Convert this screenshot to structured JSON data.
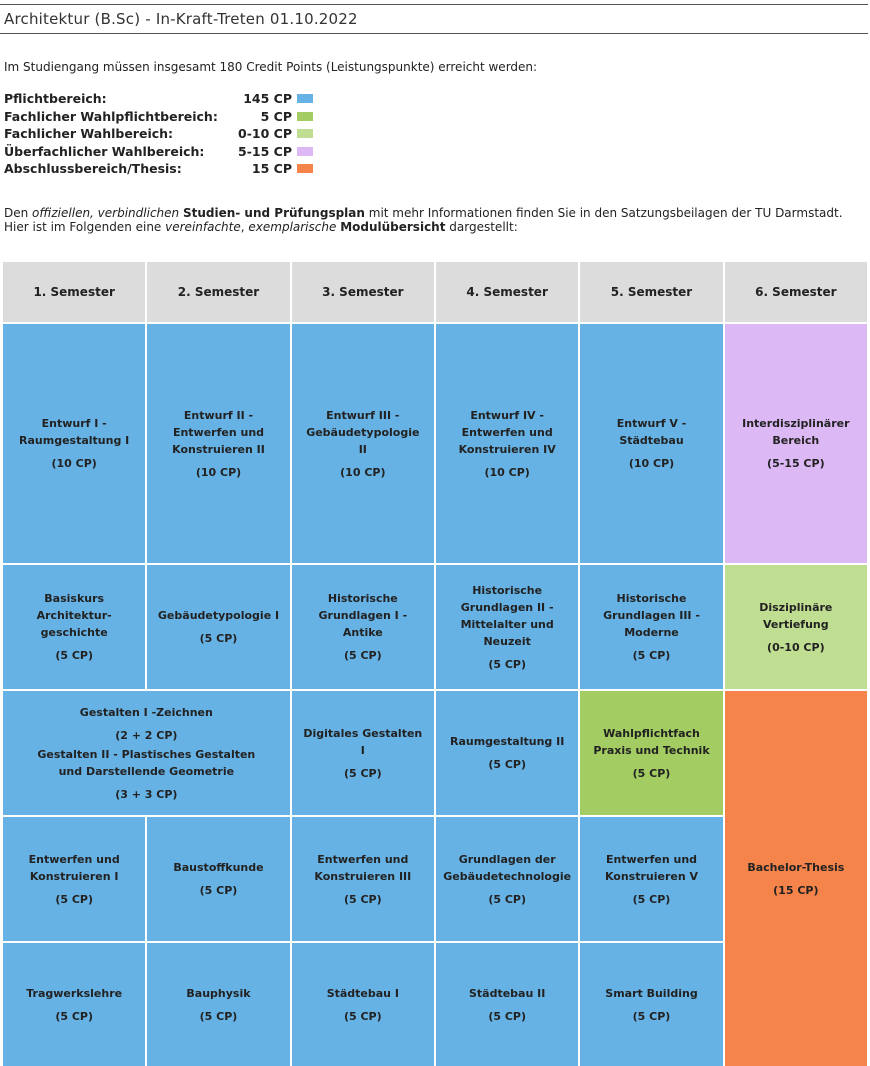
{
  "title": "Architektur (B.Sc) - In-Kraft-Treten 01.10.2022",
  "intro": "Im Studiengang müssen insgesamt 180 Credit Points (Leistungspunkte) erreicht werden:",
  "legend": [
    {
      "label": "Pflichtbereich:",
      "cp": "145 CP",
      "color": "#67b2e4"
    },
    {
      "label": "Fachlicher Wahlpflichtbereich:",
      "cp": "5 CP",
      "color": "#a3cd62"
    },
    {
      "label": "Fachlicher Wahlbereich:",
      "cp": "0-10 CP",
      "color": "#c0de91"
    },
    {
      "label": "Überfachlicher Wahlbereich:",
      "cp": "5-15 CP",
      "color": "#dcb8f5"
    },
    {
      "label": "Abschlussbereich/Thesis:",
      "cp": "15 CP",
      "color": "#f5844b"
    }
  ],
  "description": {
    "l1_a": "Den ",
    "l1_b": "offiziellen, verbindlichen",
    "l1_c": " ",
    "l1_d": "Studien- und Prüfungsplan",
    "l1_e": " mit mehr Informationen finden Sie in den Satzungsbeilagen der TU Darmstadt.",
    "l2_a": "Hier ist im Folgenden eine ",
    "l2_b": "vereinfachte",
    "l2_c": ", ",
    "l2_d": "exemplarische",
    "l2_e": " ",
    "l2_f": "Modulübersicht",
    "l2_g": " dargestellt:"
  },
  "semesters": [
    "1. Semester",
    "2. Semester",
    "3. Semester",
    "4. Semester",
    "5. Semester",
    "6. Semester"
  ],
  "modules": {
    "entwurf1": {
      "lines": [
        "Entwurf I -",
        "Raumgestaltung I"
      ],
      "cp": "(10 CP)"
    },
    "entwurf2": {
      "lines": [
        "Entwurf II -",
        "Entwerfen und",
        "Konstruieren II"
      ],
      "cp": "(10 CP)"
    },
    "entwurf3": {
      "lines": [
        "Entwurf III -",
        "Gebäudetypologie II"
      ],
      "cp": "(10 CP)"
    },
    "entwurf4": {
      "lines": [
        "Entwurf IV -",
        "Entwerfen und",
        "Konstruieren IV"
      ],
      "cp": "(10 CP)"
    },
    "entwurf5": {
      "lines": [
        "Entwurf V -",
        "Städtebau"
      ],
      "cp": "(10 CP)"
    },
    "interdisziplinaer": {
      "lines": [
        "Interdisziplinärer",
        "Bereich"
      ],
      "cp": "(5-15 CP)"
    },
    "basiskurs": {
      "lines": [
        "Basiskurs",
        "Architektur-",
        "geschichte"
      ],
      "cp": "(5 CP)"
    },
    "gebaeudetypologie1": {
      "lines": [
        "Gebäudetypologie I"
      ],
      "cp": "(5 CP)"
    },
    "historische1": {
      "lines": [
        "Historische",
        "Grundlagen I -",
        "Antike"
      ],
      "cp": "(5 CP)"
    },
    "historische2": {
      "lines": [
        "Historische",
        "Grundlagen II -",
        "Mittelalter und",
        "Neuzeit"
      ],
      "cp": "(5 CP)"
    },
    "historische3": {
      "lines": [
        "Historische",
        "Grundlagen III -",
        "Moderne"
      ],
      "cp": "(5 CP)"
    },
    "vertiefung": {
      "lines": [
        "Disziplinäre",
        "Vertiefung"
      ],
      "cp": "(0-10 CP)"
    },
    "gestalten": {
      "l1": "Gestalten I -Zeichnen",
      "cp1": "(2 + 2 CP)",
      "l2": "Gestalten II - Plastisches Gestalten",
      "l3": "und Darstellende Geometrie",
      "cp2": "(3 + 3 CP)"
    },
    "digitales": {
      "lines": [
        "Digitales Gestalten I"
      ],
      "cp": "(5 CP)"
    },
    "raumgestaltung2": {
      "lines": [
        "Raumgestaltung II"
      ],
      "cp": "(5 CP)"
    },
    "wahlpflicht": {
      "lines": [
        "Wahlpflichtfach",
        "Praxis und Technik"
      ],
      "cp": "(5 CP)"
    },
    "thesis": {
      "lines": [
        "Bachelor-Thesis"
      ],
      "cp": "(15 CP)"
    },
    "ek1": {
      "lines": [
        "Entwerfen und",
        "Konstruieren I"
      ],
      "cp": "(5 CP)"
    },
    "baustoff": {
      "lines": [
        "Baustoffkunde"
      ],
      "cp": "(5 CP)"
    },
    "ek3": {
      "lines": [
        "Entwerfen und",
        "Konstruieren III"
      ],
      "cp": "(5 CP)"
    },
    "gebaeudetechnologie": {
      "lines": [
        "Grundlagen der",
        "Gebäudetechnologie"
      ],
      "cp": "(5 CP)"
    },
    "ek5": {
      "lines": [
        "Entwerfen und",
        "Konstruieren V"
      ],
      "cp": "(5 CP)"
    },
    "tragwerk": {
      "lines": [
        "Tragwerkslehre"
      ],
      "cp": "(5 CP)"
    },
    "bauphysik": {
      "lines": [
        "Bauphysik"
      ],
      "cp": "(5 CP)"
    },
    "staedtebau1": {
      "lines": [
        "Städtebau I"
      ],
      "cp": "(5 CP)"
    },
    "staedtebau2": {
      "lines": [
        "Städtebau II"
      ],
      "cp": "(5 CP)"
    },
    "smart": {
      "lines": [
        "Smart Building"
      ],
      "cp": "(5 CP)"
    }
  }
}
